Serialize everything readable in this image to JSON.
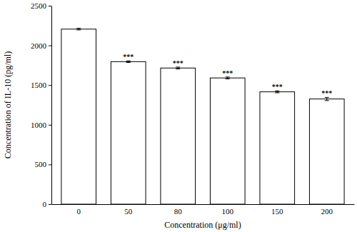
{
  "chart_data": {
    "type": "bar",
    "categories": [
      "0",
      "50",
      "80",
      "100",
      "150",
      "200"
    ],
    "values": [
      2205,
      1795,
      1715,
      1590,
      1415,
      1325
    ],
    "errors": [
      10,
      10,
      12,
      12,
      12,
      20
    ],
    "significance": [
      null,
      "***",
      "***",
      "***",
      "***",
      "***"
    ],
    "x_label": "Concentration (μg/ml)",
    "y_label": "Concentration of IL-10 (pg/ml)",
    "color": "#ffffff",
    "ylim": [
      0,
      2500
    ],
    "yticks": [
      0,
      500,
      1000,
      1500,
      2000,
      2500
    ]
  }
}
